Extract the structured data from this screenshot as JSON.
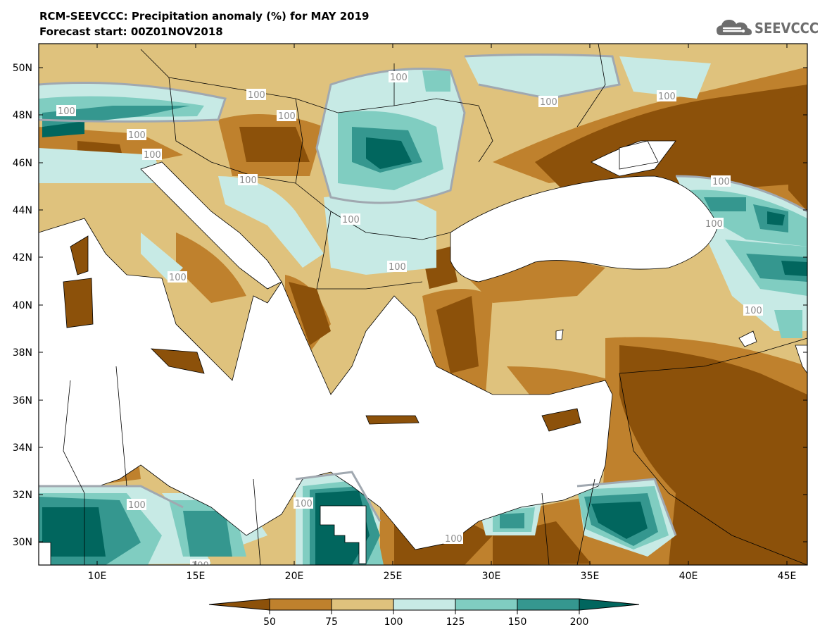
{
  "header": {
    "title": "RCM-SEEVCCC: Precipitation anomaly (%) for MAY 2019",
    "subtitle": "Forecast start: 00Z01NOV2018"
  },
  "logo": {
    "text": "SEEVCCC",
    "icon": "cloud-logo-icon"
  },
  "map": {
    "lon_range": [
      7,
      46
    ],
    "lat_range": [
      29,
      51
    ],
    "x_ticks": [
      "10E",
      "15E",
      "20E",
      "25E",
      "30E",
      "35E",
      "40E",
      "45E"
    ],
    "y_ticks": [
      "30N",
      "32N",
      "34N",
      "36N",
      "38N",
      "40N",
      "42N",
      "44N",
      "46N",
      "48N",
      "50N"
    ],
    "contour_labels": [
      "100",
      "100",
      "100",
      "100",
      "100",
      "100",
      "100",
      "100",
      "100",
      "100",
      "100",
      "100",
      "100",
      "100",
      "100",
      "100",
      "100",
      "100",
      "100"
    ]
  },
  "colorbar": {
    "ticks": [
      "50",
      "75",
      "100",
      "125",
      "150",
      "200"
    ],
    "colors": {
      "below_50": "#8c510a",
      "50_75": "#bf812d",
      "75_100": "#dfc27d",
      "100_125": "#c7eae5",
      "125_150": "#80cdc1",
      "150_200": "#35978f",
      "above_200": "#01665e",
      "contour": "#a0a8b0",
      "land_mask": "#ffffff"
    }
  }
}
